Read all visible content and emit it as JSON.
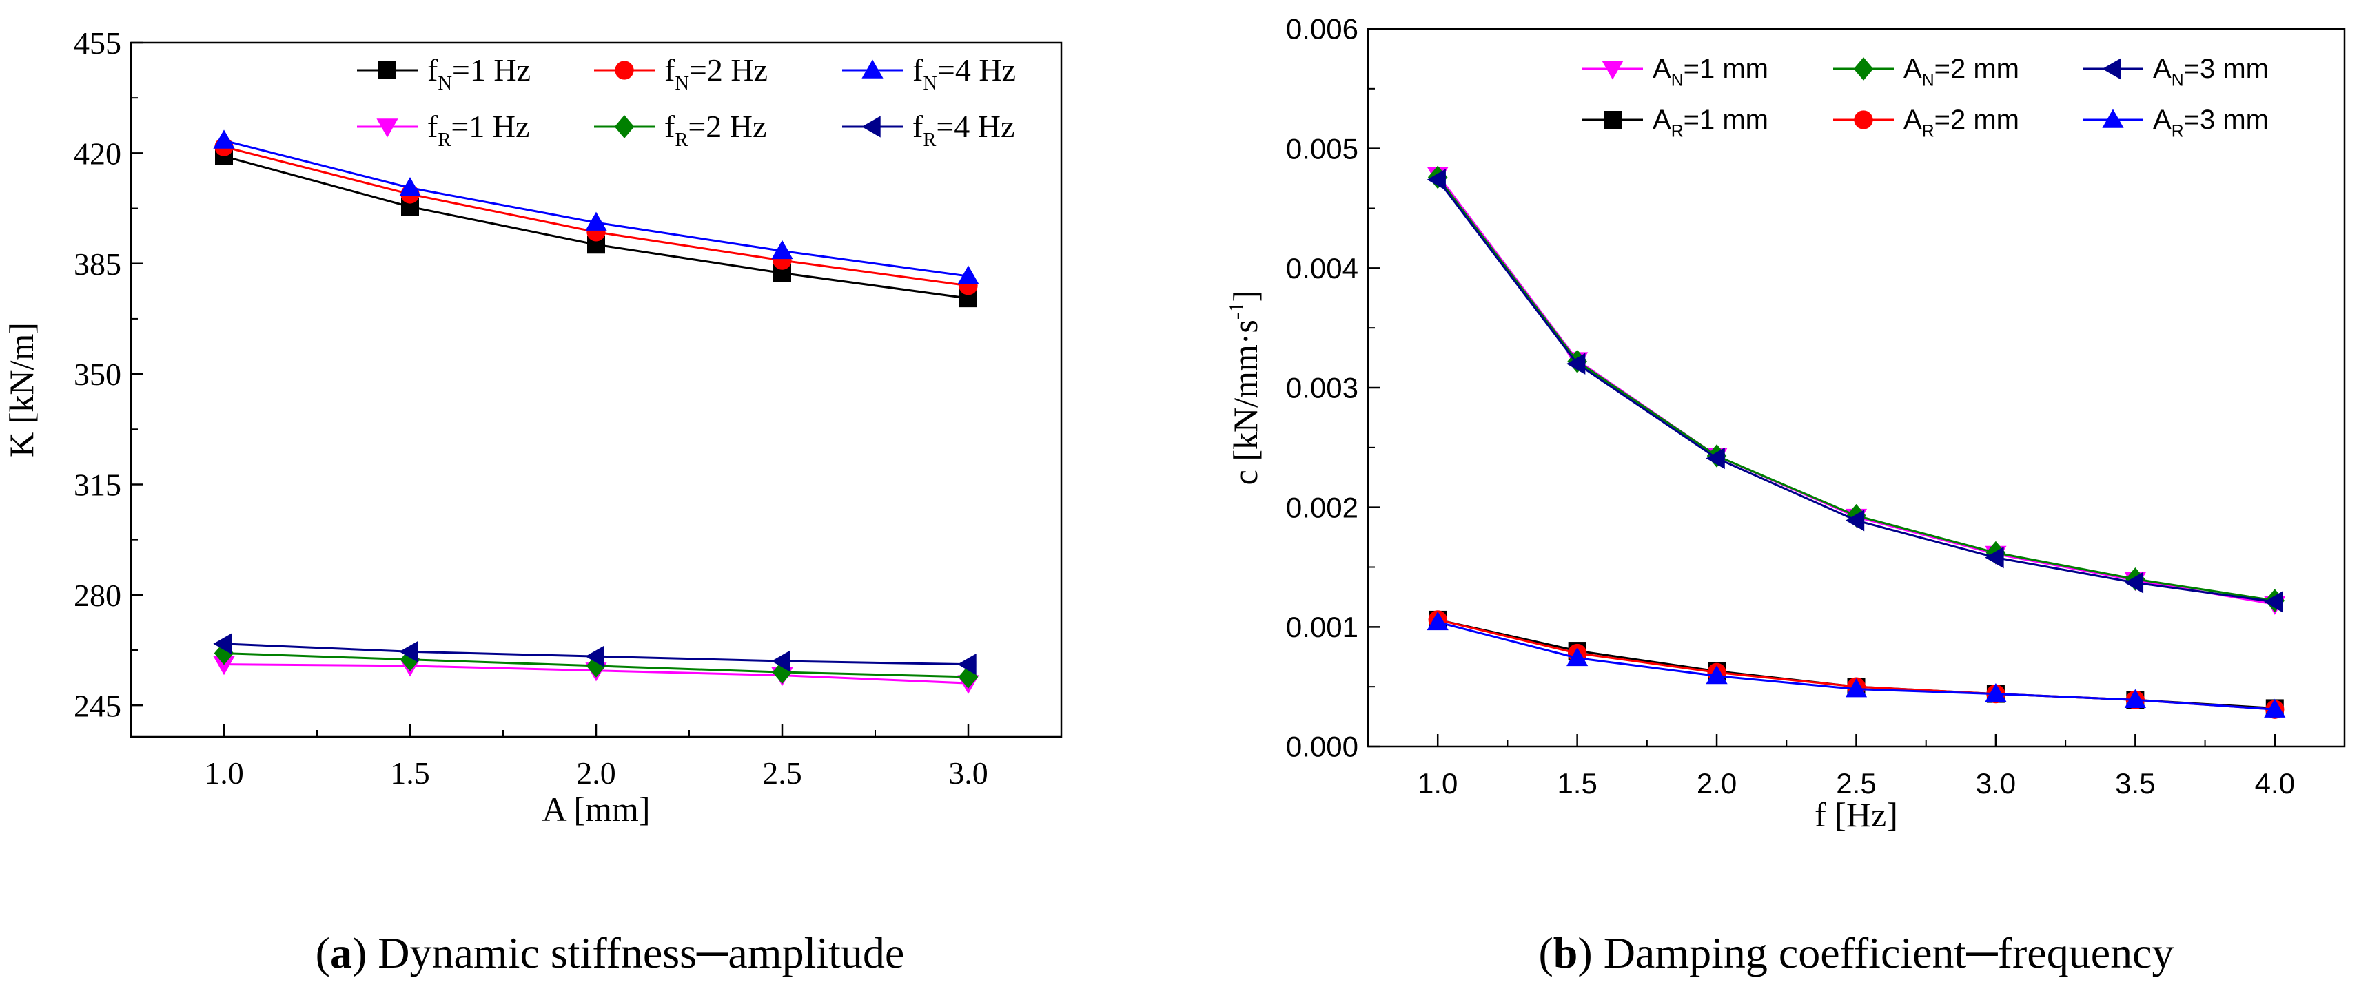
{
  "chart_data": [
    {
      "type": "line",
      "font": "serif",
      "caption_label": "(a)",
      "caption_letter": "a",
      "caption_text": "Dynamic stiffness─amplitude",
      "xlabel": "A [mm]",
      "ylabel": "K [kN/m]",
      "xlim": [
        0.75,
        3.25
      ],
      "ylim": [
        235,
        455
      ],
      "x_ticks": [
        1.0,
        1.5,
        2.0,
        2.5,
        3.0
      ],
      "x_tick_labels": [
        "1.0",
        "1.5",
        "2.0",
        "2.5",
        "3.0"
      ],
      "y_ticks": [
        245,
        280,
        315,
        350,
        385,
        420,
        455
      ],
      "y_tick_labels": [
        "245",
        "280",
        "315",
        "350",
        "385",
        "420",
        "455"
      ],
      "x": [
        1.0,
        1.5,
        2.0,
        2.5,
        3.0
      ],
      "legend_position": "top-right",
      "series": [
        {
          "name": "fN=1 Hz",
          "legend_main": "f",
          "legend_sub": "N",
          "legend_rest": "=1 Hz",
          "color": "#000000",
          "marker": "square",
          "values": [
            419,
            403,
            391,
            382,
            374
          ]
        },
        {
          "name": "fN=2 Hz",
          "legend_main": "f",
          "legend_sub": "N",
          "legend_rest": "=2 Hz",
          "color": "#ff0000",
          "marker": "circle",
          "values": [
            422,
            407,
            395,
            386,
            378
          ]
        },
        {
          "name": "fN=4 Hz",
          "legend_main": "f",
          "legend_sub": "N",
          "legend_rest": "=4 Hz",
          "color": "#0000ff",
          "marker": "triangle-up",
          "values": [
            424,
            409,
            398,
            389,
            381
          ]
        },
        {
          "name": "fR=1 Hz",
          "legend_main": "f",
          "legend_sub": "R",
          "legend_rest": "=1 Hz",
          "color": "#ff00ff",
          "marker": "triangle-down",
          "values": [
            258,
            257.5,
            256,
            254.5,
            252
          ]
        },
        {
          "name": "fR=2 Hz",
          "legend_main": "f",
          "legend_sub": "R",
          "legend_rest": "=2 Hz",
          "color": "#008000",
          "marker": "diamond",
          "values": [
            261.5,
            259.5,
            257.5,
            255.5,
            254
          ]
        },
        {
          "name": "fR=4 Hz",
          "legend_main": "f",
          "legend_sub": "R",
          "legend_rest": "=4 Hz",
          "color": "#00008b",
          "marker": "triangle-left",
          "values": [
            264.5,
            262,
            260.5,
            259,
            258
          ]
        }
      ]
    },
    {
      "type": "line",
      "font": "sans",
      "caption_label": "(b)",
      "caption_letter": "b",
      "caption_text": "Damping coefficient─frequency",
      "xlabel": "f [Hz]",
      "ylabel": "c [kN/mm·s",
      "ylabel_sup": "-1",
      "ylabel_end": "]",
      "xlim": [
        0.75,
        4.25
      ],
      "ylim": [
        0,
        0.006
      ],
      "x_ticks": [
        1.0,
        1.5,
        2.0,
        2.5,
        3.0,
        3.5,
        4.0
      ],
      "x_tick_labels": [
        "1.0",
        "1.5",
        "2.0",
        "2.5",
        "3.0",
        "3.5",
        "4.0"
      ],
      "y_ticks": [
        0,
        0.001,
        0.002,
        0.003,
        0.004,
        0.005,
        0.006
      ],
      "y_tick_labels": [
        "0.000",
        "0.001",
        "0.002",
        "0.003",
        "0.004",
        "0.005",
        "0.006"
      ],
      "x": [
        1.0,
        1.5,
        2.0,
        2.5,
        3.0,
        3.5,
        4.0
      ],
      "legend_position": "top-right",
      "series": [
        {
          "name": "AN=1 mm",
          "legend_main": "A",
          "legend_sub": "N",
          "legend_rest": "=1 mm",
          "color": "#ff00ff",
          "marker": "triangle-down",
          "values": [
            0.00478,
            0.00323,
            0.00243,
            0.00192,
            0.00161,
            0.00139,
            0.00119
          ]
        },
        {
          "name": "AN=2 mm",
          "legend_main": "A",
          "legend_sub": "N",
          "legend_rest": "=2 mm",
          "color": "#008000",
          "marker": "diamond",
          "values": [
            0.00476,
            0.00322,
            0.00243,
            0.00193,
            0.00162,
            0.0014,
            0.00122
          ]
        },
        {
          "name": "AN=3 mm",
          "legend_main": "A",
          "legend_sub": "N",
          "legend_rest": "=3 mm",
          "color": "#00008b",
          "marker": "triangle-left",
          "values": [
            0.00474,
            0.0032,
            0.00241,
            0.00189,
            0.00158,
            0.00137,
            0.00121
          ]
        },
        {
          "name": "AR=1 mm",
          "legend_main": "A",
          "legend_sub": "R",
          "legend_rest": "=1 mm",
          "color": "#000000",
          "marker": "square",
          "values": [
            0.00106,
            0.0008,
            0.00063,
            0.0005,
            0.00044,
            0.00039,
            0.00032
          ]
        },
        {
          "name": "AR=2 mm",
          "legend_main": "A",
          "legend_sub": "R",
          "legend_rest": "=2 mm",
          "color": "#ff0000",
          "marker": "circle",
          "values": [
            0.00106,
            0.00078,
            0.00062,
            0.0005,
            0.00044,
            0.00039,
            0.00031
          ]
        },
        {
          "name": "AR=3 mm",
          "legend_main": "A",
          "legend_sub": "R",
          "legend_rest": "=3 mm",
          "color": "#0000ff",
          "marker": "triangle-up",
          "values": [
            0.00104,
            0.00074,
            0.00059,
            0.00048,
            0.00044,
            0.00039,
            0.00031
          ]
        }
      ]
    }
  ]
}
